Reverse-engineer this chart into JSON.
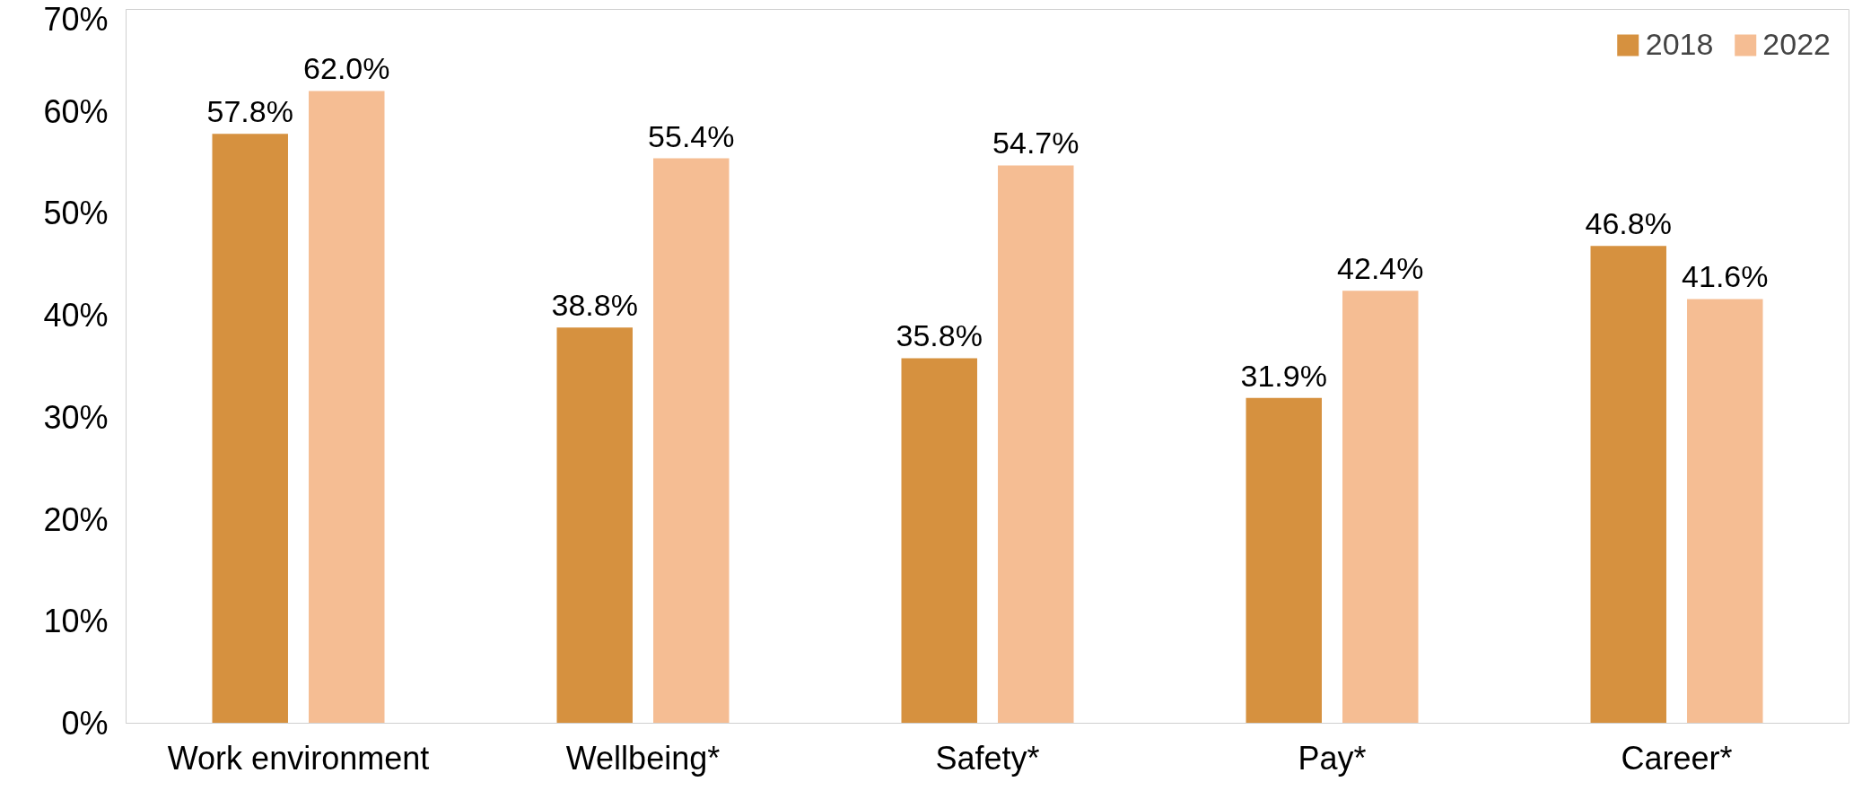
{
  "chart_data": {
    "type": "bar",
    "categories": [
      "Work environment",
      "Wellbeing*",
      "Safety*",
      "Pay*",
      "Career*"
    ],
    "series": [
      {
        "name": "2018",
        "color": "#d6913f",
        "values": [
          57.8,
          38.8,
          35.8,
          31.9,
          46.8
        ],
        "value_labels": [
          "57.8%",
          "38.8%",
          "35.8%",
          "31.9%",
          "46.8%"
        ]
      },
      {
        "name": "2022",
        "color": "#f5bd93",
        "values": [
          62.0,
          55.4,
          54.7,
          42.4,
          41.6
        ],
        "value_labels": [
          "62.0%",
          "55.4%",
          "54.7%",
          "42.4%",
          "41.6%"
        ]
      }
    ],
    "ylim": [
      0,
      70
    ],
    "yticks": [
      {
        "value": 0,
        "label": "0%"
      },
      {
        "value": 10,
        "label": "10%"
      },
      {
        "value": 20,
        "label": "20%"
      },
      {
        "value": 30,
        "label": "30%"
      },
      {
        "value": 40,
        "label": "40%"
      },
      {
        "value": 50,
        "label": "50%"
      },
      {
        "value": 60,
        "label": "60%"
      },
      {
        "value": 70,
        "label": "70%"
      }
    ],
    "grid": false,
    "legend": "top right"
  }
}
